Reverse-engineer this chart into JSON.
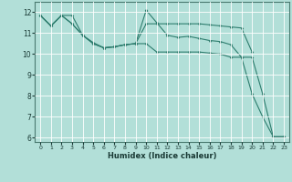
{
  "xlabel": "Humidex (Indice chaleur)",
  "background_color": "#b2dfd8",
  "grid_color": "#ffffff",
  "line_color": "#2e7d6e",
  "xlim": [
    -0.5,
    23.5
  ],
  "ylim": [
    5.8,
    12.5
  ],
  "yticks": [
    6,
    7,
    8,
    9,
    10,
    11,
    12
  ],
  "xticks": [
    0,
    1,
    2,
    3,
    4,
    5,
    6,
    7,
    8,
    9,
    10,
    11,
    12,
    13,
    14,
    15,
    16,
    17,
    18,
    19,
    20,
    21,
    22,
    23
  ],
  "line1_x": [
    0,
    1,
    2,
    3,
    4,
    5,
    6,
    7,
    8,
    9,
    10,
    11,
    12,
    13,
    14,
    15,
    16,
    17,
    18,
    19,
    20
  ],
  "line1_y": [
    11.85,
    11.35,
    11.85,
    11.85,
    10.9,
    10.55,
    10.3,
    10.35,
    10.45,
    10.5,
    11.45,
    11.45,
    11.45,
    11.45,
    11.45,
    11.45,
    11.4,
    11.35,
    11.3,
    11.25,
    10.1
  ],
  "line2_x": [
    0,
    1,
    2,
    3,
    4,
    5,
    6,
    7,
    8,
    9,
    10,
    11,
    12,
    13,
    14,
    15,
    16,
    17,
    18,
    19,
    20,
    21,
    22,
    23
  ],
  "line2_y": [
    11.85,
    11.35,
    11.85,
    11.45,
    10.9,
    10.5,
    10.3,
    10.35,
    10.45,
    10.5,
    12.1,
    11.5,
    10.9,
    10.8,
    10.85,
    10.75,
    10.65,
    10.6,
    10.45,
    9.85,
    8.1,
    7.0,
    6.05,
    6.05
  ],
  "line3_x": [
    0,
    1,
    2,
    3,
    4,
    5,
    6,
    7,
    8,
    9,
    10,
    11,
    12,
    13,
    14,
    15,
    16,
    17,
    18,
    19,
    20,
    21,
    22,
    23
  ],
  "line3_y": [
    11.85,
    11.35,
    11.85,
    11.45,
    10.9,
    10.5,
    10.3,
    10.35,
    10.45,
    10.5,
    10.5,
    10.1,
    10.1,
    10.1,
    10.1,
    10.1,
    10.05,
    10.0,
    9.85,
    9.85,
    9.85,
    8.1,
    6.05,
    6.05
  ]
}
